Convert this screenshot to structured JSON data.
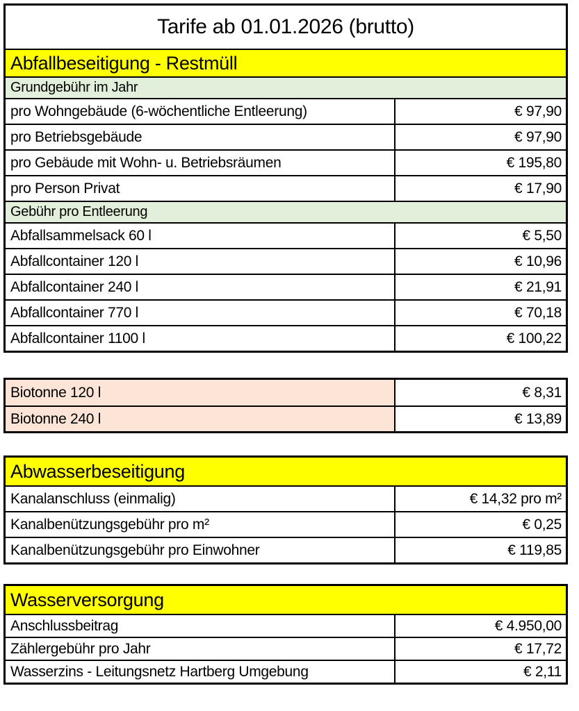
{
  "title": "Tarife ab 01.01.2026 (brutto)",
  "colors": {
    "section_header_bg": "#ffff00",
    "subheader_bg": "#e2efda",
    "highlight_bg": "#fce4d6",
    "border": "#000000"
  },
  "waste": {
    "header": "Abfallbeseitigung - Restmüll",
    "annual": {
      "subheader": "Grundgebühr im Jahr",
      "rows": [
        {
          "label": "pro Wohngebäude (6-wöchentliche Entleerung)",
          "value": "€ 97,90"
        },
        {
          "label": "pro Betriebsgebäude",
          "value": "€ 97,90"
        },
        {
          "label": "pro Gebäude mit Wohn- u. Betriebsräumen",
          "value": "€ 195,80"
        },
        {
          "label": "pro Person Privat",
          "value": "€ 17,90"
        }
      ]
    },
    "per_emptying": {
      "subheader": "Gebühr pro Entleerung",
      "rows": [
        {
          "label": "Abfallsammelsack 60 l",
          "value": "€ 5,50"
        },
        {
          "label": "Abfallcontainer 120 l",
          "value": "€ 10,96"
        },
        {
          "label": "Abfallcontainer 240 l",
          "value": "€ 21,91"
        },
        {
          "label": "Abfallcontainer 770 l",
          "value": "€ 70,18"
        },
        {
          "label": "Abfallcontainer 1100 l",
          "value": "€ 100,22"
        }
      ]
    }
  },
  "biotonne": {
    "rows": [
      {
        "label": "Biotonne 120 l",
        "value": "€ 8,31"
      },
      {
        "label": "Biotonne 240 l",
        "value": "€ 13,89"
      }
    ]
  },
  "sewage": {
    "header": "Abwasserbeseitigung",
    "rows": [
      {
        "label": "Kanalanschluss (einmalig)",
        "value": "€ 14,32 pro m²"
      },
      {
        "label": "Kanalbenützungsgebühr pro m²",
        "value": "€ 0,25"
      },
      {
        "label": "Kanalbenützungsgebühr pro Einwohner",
        "value": "€ 119,85"
      }
    ]
  },
  "water": {
    "header": "Wasserversorgung",
    "rows": [
      {
        "label": "Anschlussbeitrag",
        "value": "€ 4.950,00"
      },
      {
        "label": "Zählergebühr pro Jahr",
        "value": "€ 17,72"
      },
      {
        "label": "Wasserzins - Leitungsnetz Hartberg Umgebung",
        "value": "€ 2,11"
      }
    ]
  }
}
